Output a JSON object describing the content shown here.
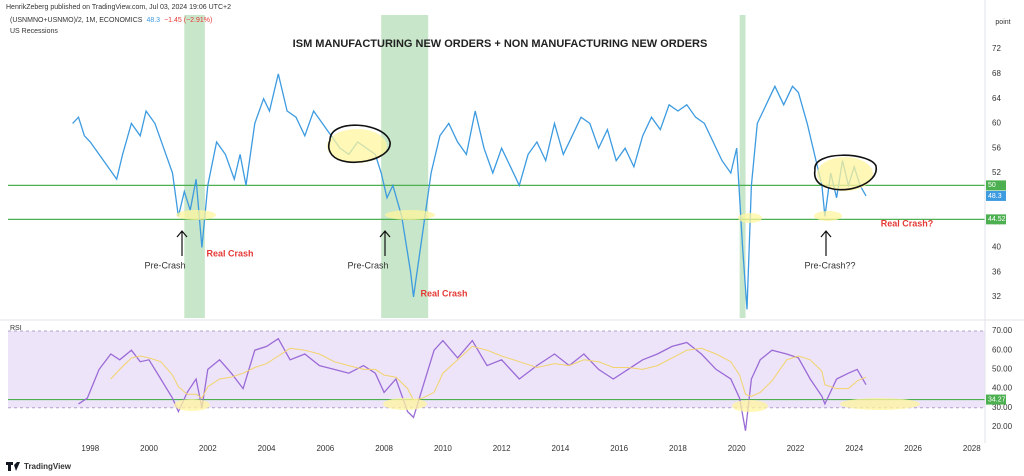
{
  "header": {
    "publisher": "HenrikZeberg published on TradingView.com, Jul 03, 2024 19:06 UTC+2",
    "symbol": "(USNMNO+USNMO)/2, 1M, ECONOMICS",
    "value": 48.3,
    "change": "−1.45 (−2.91%)",
    "recessions_label": "US Recessions",
    "unit": "point",
    "logo": "TradingView"
  },
  "chart_data": [
    {
      "type": "line",
      "title": "ISM MANUFACTURING NEW ORDERS + NON MANUFACTURING NEW ORDERS",
      "x": [
        1997.4,
        1997.6,
        1997.8,
        1998.0,
        1998.3,
        1998.6,
        1998.9,
        1999.1,
        1999.4,
        1999.7,
        1999.9,
        2000.2,
        2000.5,
        2000.8,
        2001.0,
        2001.2,
        2001.4,
        2001.6,
        2001.8,
        2002.0,
        2002.3,
        2002.6,
        2002.9,
        2003.1,
        2003.3,
        2003.6,
        2003.9,
        2004.1,
        2004.4,
        2004.7,
        2005.0,
        2005.3,
        2005.6,
        2005.9,
        2006.2,
        2006.5,
        2006.8,
        2007.1,
        2007.4,
        2007.7,
        2007.9,
        2008.1,
        2008.3,
        2008.6,
        2008.9,
        2009.0,
        2009.3,
        2009.6,
        2009.9,
        2010.2,
        2010.5,
        2010.8,
        2011.1,
        2011.4,
        2011.7,
        2012.0,
        2012.3,
        2012.6,
        2012.9,
        2013.2,
        2013.5,
        2013.8,
        2014.1,
        2014.4,
        2014.7,
        2015.0,
        2015.3,
        2015.6,
        2015.9,
        2016.2,
        2016.5,
        2016.8,
        2017.1,
        2017.4,
        2017.7,
        2018.0,
        2018.3,
        2018.6,
        2018.9,
        2019.2,
        2019.5,
        2019.8,
        2020.0,
        2020.2,
        2020.35,
        2020.5,
        2020.7,
        2020.9,
        2021.1,
        2021.3,
        2021.6,
        2021.9,
        2022.1,
        2022.4,
        2022.7,
        2022.9,
        2023.0,
        2023.2,
        2023.4,
        2023.6,
        2023.8,
        2024.0,
        2024.2,
        2024.4
      ],
      "series": [
        {
          "name": "(USNMNO+USNMO)/2",
          "color": "#3d9be0",
          "values": [
            60,
            61,
            58,
            57,
            55,
            53,
            51,
            55,
            60,
            58,
            62,
            60,
            56,
            52,
            45,
            49,
            46,
            51,
            40,
            50,
            57,
            55,
            51,
            55,
            50,
            60,
            64,
            62,
            68,
            62,
            61,
            58,
            62,
            60,
            58,
            56,
            55,
            57,
            56,
            55,
            52,
            48,
            50,
            45,
            36,
            32,
            42,
            52,
            58,
            60,
            57,
            55,
            62,
            56,
            52,
            56,
            53,
            50,
            55,
            57,
            54,
            60,
            55,
            58,
            61,
            60,
            56,
            59,
            54,
            56,
            53,
            58,
            61,
            59,
            63,
            62,
            63,
            61,
            60,
            57,
            54,
            52,
            56,
            40,
            30,
            50,
            60,
            62,
            64,
            66,
            63,
            66,
            65,
            60,
            54,
            50,
            45,
            52,
            48,
            54,
            50,
            53,
            50,
            48.3
          ]
        }
      ],
      "xlim": [
        1995.2,
        2028.45
      ],
      "xticks": [
        1998,
        2000,
        2002,
        2004,
        2006,
        2008,
        2010,
        2012,
        2014,
        2016,
        2018,
        2020,
        2022,
        2024,
        2026,
        2028
      ],
      "ylim": [
        28.6,
        77.5
      ],
      "yticks": [
        32,
        36,
        40,
        44,
        48,
        52,
        56,
        60,
        64,
        68,
        72
      ],
      "recessions": [
        [
          2001.2,
          2001.9
        ],
        [
          2007.9,
          2009.5
        ],
        [
          2020.1,
          2020.3
        ]
      ],
      "recession_color": "#c8e6c9",
      "hlines": [
        50,
        44.52
      ],
      "hline_color": "#4caf50",
      "annotations": [
        {
          "text": "Pre-Crash",
          "color": "#333333"
        },
        {
          "text": "Real Crash",
          "color": "#e53935"
        },
        {
          "text": "Pre-Crash",
          "color": "#333333"
        },
        {
          "text": "Real Crash",
          "color": "#e53935"
        },
        {
          "text": "Pre-Crash??",
          "color": "#333333"
        },
        {
          "text": "Real Crash?",
          "color": "#e53935"
        }
      ]
    },
    {
      "type": "line",
      "title": "RSI",
      "x": [
        1997.6,
        1997.9,
        1998.3,
        1998.7,
        1999.0,
        1999.4,
        1999.7,
        2000.0,
        2000.4,
        2000.8,
        2001.0,
        2001.3,
        2001.6,
        2001.8,
        2002.0,
        2002.4,
        2002.8,
        2003.2,
        2003.6,
        2004.0,
        2004.4,
        2004.8,
        2005.3,
        2005.8,
        2006.3,
        2006.8,
        2007.3,
        2007.7,
        2008.0,
        2008.4,
        2008.8,
        2009.0,
        2009.3,
        2009.7,
        2010.0,
        2010.5,
        2011.0,
        2011.5,
        2012.0,
        2012.6,
        2013.2,
        2013.8,
        2014.3,
        2014.8,
        2015.3,
        2015.8,
        2016.3,
        2016.8,
        2017.3,
        2017.8,
        2018.3,
        2018.8,
        2019.3,
        2019.8,
        2020.1,
        2020.3,
        2020.5,
        2020.8,
        2021.2,
        2021.7,
        2022.1,
        2022.5,
        2022.9,
        2023.0,
        2023.4,
        2023.8,
        2024.1,
        2024.4
      ],
      "series": [
        {
          "name": "RSI",
          "color": "#9b6bd6",
          "values": [
            32,
            35,
            50,
            58,
            55,
            60,
            54,
            55,
            45,
            35,
            28,
            38,
            45,
            30,
            50,
            55,
            48,
            40,
            60,
            62,
            66,
            55,
            58,
            52,
            50,
            48,
            52,
            48,
            38,
            45,
            28,
            25,
            40,
            60,
            65,
            56,
            65,
            52,
            55,
            45,
            52,
            58,
            52,
            58,
            50,
            45,
            50,
            55,
            58,
            62,
            64,
            58,
            50,
            45,
            35,
            18,
            45,
            55,
            60,
            58,
            56,
            45,
            36,
            32,
            45,
            48,
            50,
            42
          ]
        },
        {
          "color": "#f2d36b",
          "values": [
            null,
            null,
            null,
            45,
            50,
            56,
            57,
            56,
            54,
            47,
            41,
            37,
            37,
            35,
            41,
            45,
            46,
            48,
            51,
            53,
            57,
            61,
            60,
            58,
            54,
            52,
            50,
            50,
            47,
            46,
            40,
            34,
            35,
            38,
            48,
            55,
            62,
            60,
            57,
            54,
            51,
            53,
            52,
            55,
            54,
            51,
            51,
            50,
            52,
            56,
            60,
            61,
            58,
            54,
            47,
            37,
            36,
            38,
            44,
            55,
            57,
            55,
            49,
            42,
            40,
            40,
            44,
            46
          ]
        }
      ],
      "xlim": [
        1995.2,
        2028.45
      ],
      "ylim": [
        13.2,
        74.7
      ],
      "yticks": [
        {
          "value": 20,
          "label": "20.00"
        },
        {
          "value": 30,
          "label": "30.00"
        },
        {
          "value": 40,
          "label": "40.00"
        },
        {
          "value": 50,
          "label": "50.00"
        },
        {
          "value": 60,
          "label": "60.00"
        },
        {
          "value": 70,
          "label": "70.00"
        }
      ],
      "band": [
        30,
        70
      ],
      "band_color": "#ede4fa",
      "hlines": [
        34.27
      ],
      "hline_color": "#4caf50"
    }
  ]
}
